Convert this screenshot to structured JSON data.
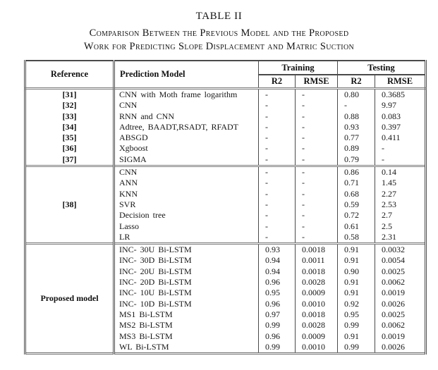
{
  "title": "TABLE II",
  "caption": {
    "line1": "Comparison Between the Previous Model and the Proposed",
    "line2": "Work for Predicting Slope Displacement and Matric Suction"
  },
  "table": {
    "headers": {
      "reference": "Reference",
      "model": "Prediction Model",
      "training": "Training",
      "testing": "Testing",
      "r2": "R2",
      "rmse": "RMSE"
    },
    "groups": [
      {
        "rows": [
          {
            "ref": "[31]",
            "model": "CNN with Moth frame logarithm",
            "training_r2": "-",
            "training_rmse": "-",
            "testing_r2": "0.80",
            "testing_rmse": "0.3685"
          },
          {
            "ref": "[32]",
            "model": "CNN",
            "training_r2": "-",
            "training_rmse": "-",
            "testing_r2": "-",
            "testing_rmse": "9.97"
          },
          {
            "ref": "[33]",
            "model": "RNN and CNN",
            "training_r2": "-",
            "training_rmse": "-",
            "testing_r2": "0.88",
            "testing_rmse": "0.083"
          },
          {
            "ref": "[34]",
            "model": "Adtree, BAADT,RSADT, RFADT",
            "training_r2": "-",
            "training_rmse": "-",
            "testing_r2": "0.93",
            "testing_rmse": "0.397"
          },
          {
            "ref": "[35]",
            "model": "ABSGD",
            "training_r2": "-",
            "training_rmse": "-",
            "testing_r2": "0.77",
            "testing_rmse": "0.411"
          },
          {
            "ref": "[36]",
            "model": "Xgboost",
            "training_r2": "-",
            "training_rmse": "-",
            "testing_r2": "0.89",
            "testing_rmse": "-"
          },
          {
            "ref": "[37]",
            "model": "SIGMA",
            "training_r2": "-",
            "training_rmse": "-",
            "testing_r2": "0.79",
            "testing_rmse": "-"
          }
        ]
      },
      {
        "ref": "[38]",
        "rows": [
          {
            "model": "CNN",
            "training_r2": "-",
            "training_rmse": "-",
            "testing_r2": "0.86",
            "testing_rmse": "0.14"
          },
          {
            "model": "ANN",
            "training_r2": "-",
            "training_rmse": "-",
            "testing_r2": "0.71",
            "testing_rmse": "1.45"
          },
          {
            "model": "KNN",
            "training_r2": "-",
            "training_rmse": "-",
            "testing_r2": "0.68",
            "testing_rmse": "2.27"
          },
          {
            "model": "SVR",
            "training_r2": "-",
            "training_rmse": "-",
            "testing_r2": "0.59",
            "testing_rmse": "2.53"
          },
          {
            "model": "Decision tree",
            "training_r2": "-",
            "training_rmse": "-",
            "testing_r2": "0.72",
            "testing_rmse": "2.7"
          },
          {
            "model": "Lasso",
            "training_r2": "-",
            "training_rmse": "-",
            "testing_r2": "0.61",
            "testing_rmse": "2.5"
          },
          {
            "model": "LR",
            "training_r2": "-",
            "training_rmse": "-",
            "testing_r2": "0.58",
            "testing_rmse": "2.31"
          }
        ]
      },
      {
        "ref": "Proposed model",
        "rows": [
          {
            "model": "INC- 30U Bi-LSTM",
            "training_r2": "0.93",
            "training_rmse": "0.0018",
            "testing_r2": "0.91",
            "testing_rmse": "0.0032"
          },
          {
            "model": "INC- 30D Bi-LSTM",
            "training_r2": "0.94",
            "training_rmse": "0.0011",
            "testing_r2": "0.91",
            "testing_rmse": "0.0054"
          },
          {
            "model": "INC- 20U Bi-LSTM",
            "training_r2": "0.94",
            "training_rmse": "0.0018",
            "testing_r2": "0.90",
            "testing_rmse": "0.0025"
          },
          {
            "model": "INC- 20D Bi-LSTM",
            "training_r2": "0.96",
            "training_rmse": "0.0028",
            "testing_r2": "0.91",
            "testing_rmse": "0.0062"
          },
          {
            "model": "INC- 10U Bi-LSTM",
            "training_r2": "0.95",
            "training_rmse": "0.0009",
            "testing_r2": "0.91",
            "testing_rmse": "0.0019"
          },
          {
            "model": "INC- 10D Bi-LSTM",
            "training_r2": "0.96",
            "training_rmse": "0.0010",
            "testing_r2": "0.92",
            "testing_rmse": "0.0026"
          },
          {
            "model": "MS1 Bi-LSTM",
            "training_r2": "0.97",
            "training_rmse": "0.0018",
            "testing_r2": "0.95",
            "testing_rmse": "0.0025"
          },
          {
            "model": "MS2 Bi-LSTM",
            "training_r2": "0.99",
            "training_rmse": "0.0028",
            "testing_r2": "0.99",
            "testing_rmse": "0.0062"
          },
          {
            "model": "MS3 Bi-LSTM",
            "training_r2": "0.96",
            "training_rmse": "0.0009",
            "testing_r2": "0.91",
            "testing_rmse": "0.0019"
          },
          {
            "model": "WL Bi-LSTM",
            "training_r2": "0.99",
            "training_rmse": "0.0010",
            "testing_r2": "0.99",
            "testing_rmse": "0.0026"
          }
        ]
      }
    ]
  }
}
